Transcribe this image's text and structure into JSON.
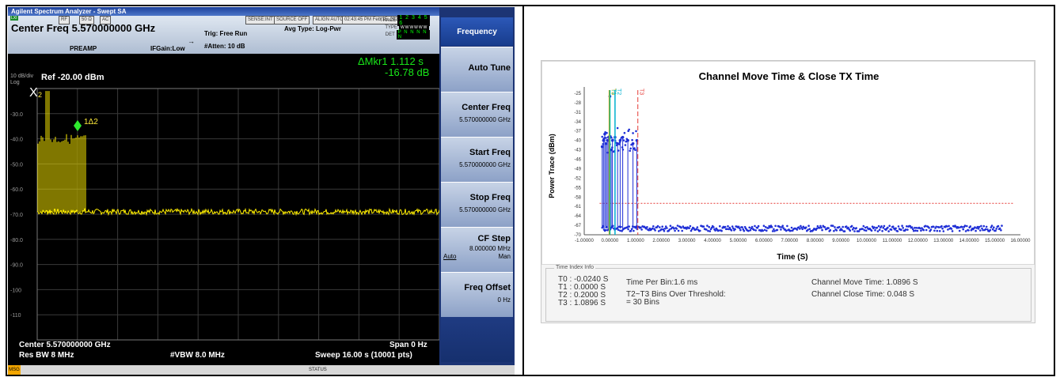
{
  "analyzer": {
    "window_title": "Agilent Spectrum Analyzer - Swept SA",
    "header": {
      "lxi": "LXI",
      "rf": "RF",
      "impedance": "50 Ω",
      "coupling": "AC",
      "sense": "SENSE:INT",
      "source": "SOURCE OFF",
      "align": "ALIGN AUTO",
      "datetime": "02:43:45 PM Feb 15, 2024",
      "center_freq": "Center Freq 5.570000000 GHz",
      "preamp": "PREAMP",
      "ifgain": "IFGain:Low",
      "trig": "Trig: Free Run",
      "atten": "#Atten: 10 dB",
      "avg_type": "Avg Type: Log-Pwr",
      "trace_label": "TRACE",
      "trace_value": "1 2 3 4 5 6",
      "type_label": "TYPE",
      "type_value": "WWWWWW",
      "det_label": "DET",
      "det_value": "P N N N N N"
    },
    "marker_readout": {
      "line1": "ΔMkr1 1.112 s",
      "line2": "-16.78 dB"
    },
    "scale": "10 dB/div",
    "log": "Log",
    "ref": "Ref -20.00 dBm",
    "y_ticks": [
      "-30.0",
      "-40.0",
      "-50.0",
      "-60.0",
      "-70.0",
      "-80.0",
      "-90.0",
      "-100",
      "-110"
    ],
    "marker_x_label": "X",
    "marker_x_sub": "2",
    "marker_delta_label": "1Δ2",
    "footer": {
      "center": "Center 5.570000000 GHz",
      "span": "Span 0 Hz",
      "res_bw": "Res BW 8 MHz",
      "vbw": "#VBW 8.0 MHz",
      "sweep": "Sweep  16.00 s (10001 pts)"
    },
    "status_msg": "MSG",
    "status_text": "STATUS",
    "menu": {
      "title": "Frequency",
      "buttons": [
        {
          "label": "Auto Tune",
          "value": ""
        },
        {
          "label": "Center Freq",
          "value": "5.570000000 GHz"
        },
        {
          "label": "Start Freq",
          "value": "5.570000000 GHz"
        },
        {
          "label": "Stop Freq",
          "value": "5.570000000 GHz"
        },
        {
          "label": "CF Step",
          "value": "8.000000 MHz",
          "opt_left": "Auto",
          "opt_right": "Man"
        },
        {
          "label": "Freq Offset",
          "value": "0 Hz"
        }
      ]
    }
  },
  "report": {
    "time_index_legend": "Time Index Info",
    "t_lines": [
      "T0 : -0.0240  S",
      "T1 : 0.0000  S",
      "T2 : 0.2000  S",
      "T3 : 1.0896  S"
    ],
    "time_per_bin": "Time Per Bin:1.6 ms",
    "bins_over_threshold_1": "T2~T3 Bins Over Threshold:",
    "bins_over_threshold_2": "= 30 Bins",
    "channel_move_time": "Channel Move Time: 1.0896  S",
    "channel_close_time": "Channel Close Time: 0.048  S"
  },
  "chart_data": {
    "type": "scatter",
    "title": "Channel Move Time & Close TX Time",
    "xlabel": "Time (S)",
    "ylabel": "Power Trace (dBm)",
    "xlim": [
      -1.0,
      16.0
    ],
    "ylim": [
      -70,
      -23
    ],
    "x_ticks": [
      "-1.00000",
      "0.00000",
      "1.00000",
      "2.00000",
      "3.00000",
      "4.00000",
      "5.00000",
      "6.00000",
      "7.00000",
      "8.00000",
      "9.00000",
      "10.00000",
      "11.00000",
      "12.00000",
      "13.00000",
      "14.00000",
      "15.00000",
      "16.00000"
    ],
    "y_ticks": [
      -25,
      -28,
      -31,
      -34,
      -37,
      -40,
      -43,
      -46,
      -49,
      -52,
      -55,
      -58,
      -61,
      -64,
      -67,
      -70
    ],
    "threshold_dbm": -60,
    "markers": [
      {
        "name": "T0",
        "x": -0.024,
        "color": "#f2a100"
      },
      {
        "name": "T1",
        "x": 0.0,
        "color": "#00b894"
      },
      {
        "name": "T2",
        "x": 0.2,
        "color": "#00b0d0"
      },
      {
        "name": "T3",
        "x": 1.0896,
        "color": "#e53935"
      }
    ],
    "bursts": [
      {
        "x": -0.3,
        "y": -42
      },
      {
        "x": -0.25,
        "y": -40
      },
      {
        "x": -0.2,
        "y": -38
      },
      {
        "x": -0.15,
        "y": -41
      },
      {
        "x": -0.1,
        "y": -40
      },
      {
        "x": -0.05,
        "y": -39
      },
      {
        "x": 0.0,
        "y": -26
      },
      {
        "x": 0.05,
        "y": -43
      },
      {
        "x": 0.1,
        "y": -40
      },
      {
        "x": 0.2,
        "y": -39
      },
      {
        "x": 0.3,
        "y": -41
      },
      {
        "x": 0.4,
        "y": -40
      },
      {
        "x": 0.5,
        "y": -39
      },
      {
        "x": 0.7,
        "y": -40
      },
      {
        "x": 0.9,
        "y": -41
      },
      {
        "x": 1.05,
        "y": -40
      }
    ],
    "noise_floor_dbm": -68
  }
}
